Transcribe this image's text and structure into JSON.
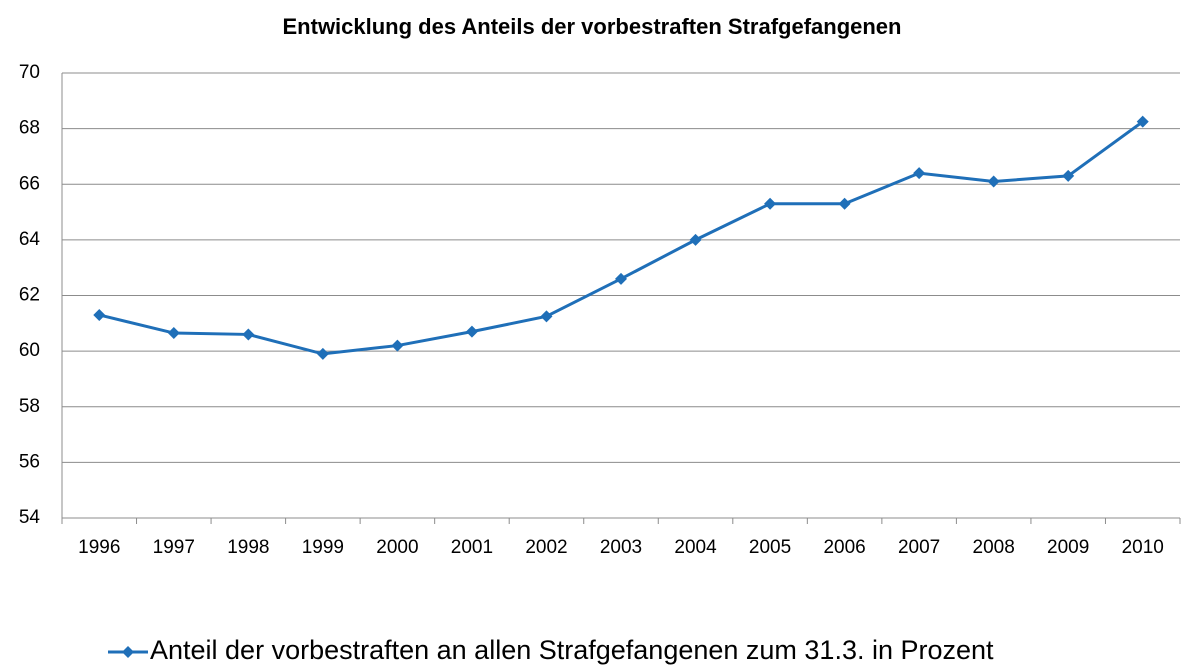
{
  "chart_data": {
    "type": "line",
    "title": "Entwicklung des Anteils der vorbestraften Strafgefangenen",
    "categories": [
      "1996",
      "1997",
      "1998",
      "1999",
      "2000",
      "2001",
      "2002",
      "2003",
      "2004",
      "2005",
      "2006",
      "2007",
      "2008",
      "2009",
      "2010"
    ],
    "series": [
      {
        "name": "Anteil der vorbestraften an allen Strafgefangenen zum 31.3. in Prozent",
        "color": "#1f6fb8",
        "values": [
          61.3,
          60.65,
          60.6,
          59.9,
          60.2,
          60.7,
          61.25,
          62.6,
          64.0,
          65.3,
          65.3,
          66.4,
          66.1,
          66.3,
          68.25
        ]
      }
    ],
    "ylim": [
      54,
      70
    ],
    "yticks": [
      54,
      56,
      58,
      60,
      62,
      64,
      66,
      68,
      70
    ],
    "grid": true,
    "legend": "bottom"
  }
}
